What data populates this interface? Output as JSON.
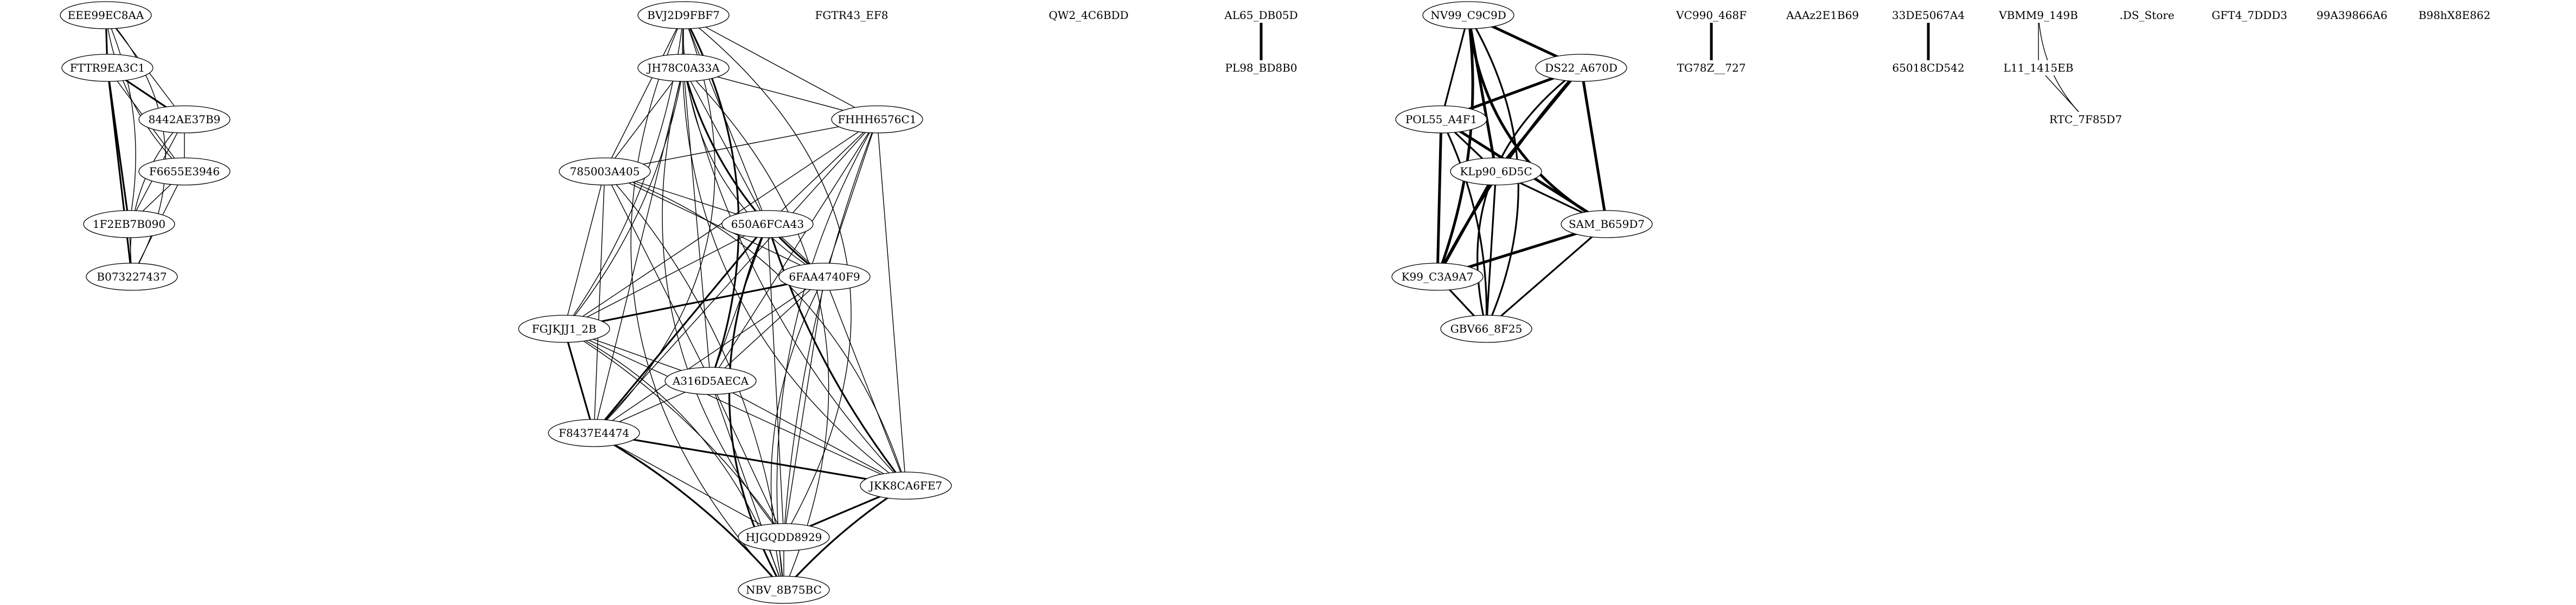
{
  "graph": {
    "background": "#ffffff",
    "stroke_color": "#000000",
    "nodes": [
      {
        "id": "EEE99EC8AA",
        "label": "EEE99EC8AA",
        "shape": "ellipse"
      },
      {
        "id": "FTTR9EA3C1",
        "label": "FTTR9EA3C1",
        "shape": "ellipse"
      },
      {
        "id": "8442AE37B9",
        "label": "8442AE37B9",
        "shape": "ellipse"
      },
      {
        "id": "F6655E3946",
        "label": "F6655E3946",
        "shape": "ellipse"
      },
      {
        "id": "1F2EB7B090",
        "label": "1F2EB7B090",
        "shape": "ellipse"
      },
      {
        "id": "B073227437",
        "label": "B073227437",
        "shape": "ellipse"
      },
      {
        "id": "BVJ2D9FBF7",
        "label": "BVJ2D9FBF7",
        "shape": "ellipse"
      },
      {
        "id": "JH78C0A33A",
        "label": "JH78C0A33A",
        "shape": "ellipse"
      },
      {
        "id": "FHHH6576C1",
        "label": "FHHH6576C1",
        "shape": "ellipse"
      },
      {
        "id": "785003A405",
        "label": "785003A405",
        "shape": "ellipse"
      },
      {
        "id": "650A6FCA43",
        "label": "650A6FCA43",
        "shape": "ellipse"
      },
      {
        "id": "6FAA4740F9",
        "label": "6FAA4740F9",
        "shape": "ellipse"
      },
      {
        "id": "FGJKJJ1_2B",
        "label": "FGJKJJ1_2B",
        "shape": "ellipse"
      },
      {
        "id": "A316D5AECA",
        "label": "A316D5AECA",
        "shape": "ellipse"
      },
      {
        "id": "F8437E4474",
        "label": "F8437E4474",
        "shape": "ellipse"
      },
      {
        "id": "JKK8CA6FE7",
        "label": "JKK8CA6FE7",
        "shape": "ellipse"
      },
      {
        "id": "HJGQDD8929",
        "label": "HJGQDD8929",
        "shape": "ellipse"
      },
      {
        "id": "NBV_8B75BC",
        "label": "NBV_8B75BC",
        "shape": "ellipse"
      },
      {
        "id": "FGTR43_EF8",
        "label": "FGTR43_EF8",
        "shape": "plain"
      },
      {
        "id": "QW2_4C6BDD",
        "label": "QW2_4C6BDD",
        "shape": "plain"
      },
      {
        "id": "AL65_DB05D",
        "label": "AL65_DB05D",
        "shape": "plain"
      },
      {
        "id": "PL98_BD8B0",
        "label": "PL98_BD8B0",
        "shape": "plain"
      },
      {
        "id": "NV99_C9C9D",
        "label": "NV99_C9C9D",
        "shape": "ellipse"
      },
      {
        "id": "DS22_A670D",
        "label": "DS22_A670D",
        "shape": "ellipse"
      },
      {
        "id": "POL55_A4F1",
        "label": "POL55_A4F1",
        "shape": "ellipse"
      },
      {
        "id": "KLp90_6D5C",
        "label": "KLp90_6D5C",
        "shape": "ellipse"
      },
      {
        "id": "SAM_B659D7",
        "label": "SAM_B659D7",
        "shape": "ellipse"
      },
      {
        "id": "K99_C3A9A7",
        "label": "K99_C3A9A7",
        "shape": "ellipse"
      },
      {
        "id": "GBV66_8F25",
        "label": "GBV66_8F25",
        "shape": "ellipse"
      },
      {
        "id": "VC990_468F",
        "label": "VC990_468F",
        "shape": "plain"
      },
      {
        "id": "TG78Z__727",
        "label": "TG78Z__727",
        "shape": "plain"
      },
      {
        "id": "AAAz2E1B69",
        "label": "AAAz2E1B69",
        "shape": "plain"
      },
      {
        "id": "33DE5067A4",
        "label": "33DE5067A4",
        "shape": "plain"
      },
      {
        "id": "65018CD542",
        "label": "65018CD542",
        "shape": "plain"
      },
      {
        "id": "VBMM9_149B",
        "label": "VBMM9_149B",
        "shape": "plain"
      },
      {
        "id": "L11_1415EB",
        "label": "L11_1415EB",
        "shape": "plain"
      },
      {
        "id": "RTC_7F85D7",
        "label": "RTC_7F85D7",
        "shape": "plain"
      },
      {
        "id": "DS_Store",
        "label": ".DS_Store",
        "shape": "plain"
      },
      {
        "id": "GFT4_7DDD3",
        "label": "GFT4_7DDD3",
        "shape": "plain"
      },
      {
        "id": "99A39866A6",
        "label": "99A39866A6",
        "shape": "plain"
      },
      {
        "id": "B98hX8E862",
        "label": "B98hX8E862",
        "shape": "plain"
      }
    ],
    "edges": [
      {
        "from": "EEE99EC8AA",
        "to": "FTTR9EA3C1",
        "weight": 2
      },
      {
        "from": "EEE99EC8AA",
        "to": "8442AE37B9",
        "weight": 1
      },
      {
        "from": "EEE99EC8AA",
        "to": "F6655E3946",
        "weight": 1
      },
      {
        "from": "EEE99EC8AA",
        "to": "1F2EB7B090",
        "weight": 1
      },
      {
        "from": "EEE99EC8AA",
        "to": "B073227437",
        "weight": 1
      },
      {
        "from": "FTTR9EA3C1",
        "to": "8442AE37B9",
        "weight": 2
      },
      {
        "from": "FTTR9EA3C1",
        "to": "F6655E3946",
        "weight": 1
      },
      {
        "from": "FTTR9EA3C1",
        "to": "1F2EB7B090",
        "weight": 2
      },
      {
        "from": "FTTR9EA3C1",
        "to": "B073227437",
        "weight": 2
      },
      {
        "from": "8442AE37B9",
        "to": "F6655E3946",
        "weight": 1
      },
      {
        "from": "8442AE37B9",
        "to": "1F2EB7B090",
        "weight": 1
      },
      {
        "from": "8442AE37B9",
        "to": "B073227437",
        "weight": 1
      },
      {
        "from": "F6655E3946",
        "to": "1F2EB7B090",
        "weight": 1
      },
      {
        "from": "F6655E3946",
        "to": "B073227437",
        "weight": 1
      },
      {
        "from": "1F2EB7B090",
        "to": "B073227437",
        "weight": 1
      },
      {
        "from": "BVJ2D9FBF7",
        "to": "JH78C0A33A",
        "weight": 1
      },
      {
        "from": "BVJ2D9FBF7",
        "to": "FHHH6576C1",
        "weight": 1
      },
      {
        "from": "BVJ2D9FBF7",
        "to": "785003A405",
        "weight": 1
      },
      {
        "from": "BVJ2D9FBF7",
        "to": "650A6FCA43",
        "weight": 1
      },
      {
        "from": "BVJ2D9FBF7",
        "to": "6FAA4740F9",
        "weight": 1
      },
      {
        "from": "BVJ2D9FBF7",
        "to": "FGJKJJ1_2B",
        "weight": 1
      },
      {
        "from": "BVJ2D9FBF7",
        "to": "A316D5AECA",
        "weight": 2
      },
      {
        "from": "BVJ2D9FBF7",
        "to": "F8437E4474",
        "weight": 1
      },
      {
        "from": "BVJ2D9FBF7",
        "to": "JKK8CA6FE7",
        "weight": 1
      },
      {
        "from": "BVJ2D9FBF7",
        "to": "HJGQDD8929",
        "weight": 1
      },
      {
        "from": "BVJ2D9FBF7",
        "to": "NBV_8B75BC",
        "weight": 1
      },
      {
        "from": "JH78C0A33A",
        "to": "FHHH6576C1",
        "weight": 1
      },
      {
        "from": "JH78C0A33A",
        "to": "785003A405",
        "weight": 1
      },
      {
        "from": "JH78C0A33A",
        "to": "650A6FCA43",
        "weight": 1
      },
      {
        "from": "JH78C0A33A",
        "to": "6FAA4740F9",
        "weight": 2
      },
      {
        "from": "JH78C0A33A",
        "to": "FGJKJJ1_2B",
        "weight": 1
      },
      {
        "from": "JH78C0A33A",
        "to": "A316D5AECA",
        "weight": 1
      },
      {
        "from": "JH78C0A33A",
        "to": "F8437E4474",
        "weight": 1
      },
      {
        "from": "JH78C0A33A",
        "to": "JKK8CA6FE7",
        "weight": 1
      },
      {
        "from": "JH78C0A33A",
        "to": "HJGQDD8929",
        "weight": 1
      },
      {
        "from": "JH78C0A33A",
        "to": "NBV_8B75BC",
        "weight": 1
      },
      {
        "from": "FHHH6576C1",
        "to": "785003A405",
        "weight": 1
      },
      {
        "from": "FHHH6576C1",
        "to": "650A6FCA43",
        "weight": 1
      },
      {
        "from": "FHHH6576C1",
        "to": "6FAA4740F9",
        "weight": 1
      },
      {
        "from": "FHHH6576C1",
        "to": "FGJKJJ1_2B",
        "weight": 1
      },
      {
        "from": "FHHH6576C1",
        "to": "A316D5AECA",
        "weight": 1
      },
      {
        "from": "FHHH6576C1",
        "to": "F8437E4474",
        "weight": 1
      },
      {
        "from": "FHHH6576C1",
        "to": "JKK8CA6FE7",
        "weight": 1
      },
      {
        "from": "FHHH6576C1",
        "to": "HJGQDD8929",
        "weight": 1
      },
      {
        "from": "FHHH6576C1",
        "to": "NBV_8B75BC",
        "weight": 1
      },
      {
        "from": "785003A405",
        "to": "650A6FCA43",
        "weight": 1
      },
      {
        "from": "785003A405",
        "to": "6FAA4740F9",
        "weight": 1
      },
      {
        "from": "785003A405",
        "to": "FGJKJJ1_2B",
        "weight": 1
      },
      {
        "from": "785003A405",
        "to": "A316D5AECA",
        "weight": 1
      },
      {
        "from": "785003A405",
        "to": "F8437E4474",
        "weight": 1
      },
      {
        "from": "785003A405",
        "to": "JKK8CA6FE7",
        "weight": 1
      },
      {
        "from": "785003A405",
        "to": "NBV_8B75BC",
        "weight": 1
      },
      {
        "from": "650A6FCA43",
        "to": "6FAA4740F9",
        "weight": 1
      },
      {
        "from": "650A6FCA43",
        "to": "FGJKJJ1_2B",
        "weight": 1
      },
      {
        "from": "650A6FCA43",
        "to": "A316D5AECA",
        "weight": 1
      },
      {
        "from": "650A6FCA43",
        "to": "F8437E4474",
        "weight": 2
      },
      {
        "from": "650A6FCA43",
        "to": "JKK8CA6FE7",
        "weight": 2
      },
      {
        "from": "650A6FCA43",
        "to": "HJGQDD8929",
        "weight": 1
      },
      {
        "from": "650A6FCA43",
        "to": "NBV_8B75BC",
        "weight": 2
      },
      {
        "from": "6FAA4740F9",
        "to": "FGJKJJ1_2B",
        "weight": 2
      },
      {
        "from": "6FAA4740F9",
        "to": "A316D5AECA",
        "weight": 1
      },
      {
        "from": "6FAA4740F9",
        "to": "F8437E4474",
        "weight": 1
      },
      {
        "from": "6FAA4740F9",
        "to": "JKK8CA6FE7",
        "weight": 1
      },
      {
        "from": "6FAA4740F9",
        "to": "HJGQDD8929",
        "weight": 1
      },
      {
        "from": "6FAA4740F9",
        "to": "NBV_8B75BC",
        "weight": 1
      },
      {
        "from": "FGJKJJ1_2B",
        "to": "A316D5AECA",
        "weight": 1
      },
      {
        "from": "FGJKJJ1_2B",
        "to": "F8437E4474",
        "weight": 2
      },
      {
        "from": "FGJKJJ1_2B",
        "to": "JKK8CA6FE7",
        "weight": 1
      },
      {
        "from": "FGJKJJ1_2B",
        "to": "HJGQDD8929",
        "weight": 1
      },
      {
        "from": "FGJKJJ1_2B",
        "to": "NBV_8B75BC",
        "weight": 1
      },
      {
        "from": "A316D5AECA",
        "to": "F8437E4474",
        "weight": 1
      },
      {
        "from": "A316D5AECA",
        "to": "JKK8CA6FE7",
        "weight": 1
      },
      {
        "from": "A316D5AECA",
        "to": "HJGQDD8929",
        "weight": 1
      },
      {
        "from": "A316D5AECA",
        "to": "NBV_8B75BC",
        "weight": 1
      },
      {
        "from": "F8437E4474",
        "to": "JKK8CA6FE7",
        "weight": 2
      },
      {
        "from": "F8437E4474",
        "to": "HJGQDD8929",
        "weight": 1
      },
      {
        "from": "F8437E4474",
        "to": "NBV_8B75BC",
        "weight": 2
      },
      {
        "from": "JKK8CA6FE7",
        "to": "HJGQDD8929",
        "weight": 2
      },
      {
        "from": "JKK8CA6FE7",
        "to": "NBV_8B75BC",
        "weight": 2
      },
      {
        "from": "HJGQDD8929",
        "to": "NBV_8B75BC",
        "weight": 1
      },
      {
        "from": "AL65_DB05D",
        "to": "PL98_BD8B0",
        "weight": 3
      },
      {
        "from": "NV99_C9C9D",
        "to": "DS22_A670D",
        "weight": 3
      },
      {
        "from": "NV99_C9C9D",
        "to": "POL55_A4F1",
        "weight": 2
      },
      {
        "from": "NV99_C9C9D",
        "to": "KLp90_6D5C",
        "weight": 3
      },
      {
        "from": "NV99_C9C9D",
        "to": "SAM_B659D7",
        "weight": 3
      },
      {
        "from": "NV99_C9C9D",
        "to": "K99_C3A9A7",
        "weight": 3
      },
      {
        "from": "NV99_C9C9D",
        "to": "GBV66_8F25",
        "weight": 2
      },
      {
        "from": "DS22_A670D",
        "to": "POL55_A4F1",
        "weight": 3
      },
      {
        "from": "DS22_A670D",
        "to": "KLp90_6D5C",
        "weight": 3
      },
      {
        "from": "DS22_A670D",
        "to": "SAM_B659D7",
        "weight": 3
      },
      {
        "from": "DS22_A670D",
        "to": "K99_C3A9A7",
        "weight": 3
      },
      {
        "from": "DS22_A670D",
        "to": "GBV66_8F25",
        "weight": 2
      },
      {
        "from": "POL55_A4F1",
        "to": "KLp90_6D5C",
        "weight": 2
      },
      {
        "from": "POL55_A4F1",
        "to": "SAM_B659D7",
        "weight": 3
      },
      {
        "from": "POL55_A4F1",
        "to": "K99_C3A9A7",
        "weight": 3
      },
      {
        "from": "POL55_A4F1",
        "to": "GBV66_8F25",
        "weight": 2
      },
      {
        "from": "KLp90_6D5C",
        "to": "SAM_B659D7",
        "weight": 2
      },
      {
        "from": "KLp90_6D5C",
        "to": "K99_C3A9A7",
        "weight": 3
      },
      {
        "from": "KLp90_6D5C",
        "to": "GBV66_8F25",
        "weight": 2
      },
      {
        "from": "SAM_B659D7",
        "to": "K99_C3A9A7",
        "weight": 3
      },
      {
        "from": "SAM_B659D7",
        "to": "GBV66_8F25",
        "weight": 2
      },
      {
        "from": "K99_C3A9A7",
        "to": "GBV66_8F25",
        "weight": 2
      },
      {
        "from": "VC990_468F",
        "to": "TG78Z__727",
        "weight": 3
      },
      {
        "from": "33DE5067A4",
        "to": "65018CD542",
        "weight": 3
      },
      {
        "from": "VBMM9_149B",
        "to": "L11_1415EB",
        "weight": 1
      },
      {
        "from": "VBMM9_149B",
        "to": "RTC_7F85D7",
        "weight": 1
      },
      {
        "from": "L11_1415EB",
        "to": "RTC_7F85D7",
        "weight": 1
      }
    ]
  }
}
